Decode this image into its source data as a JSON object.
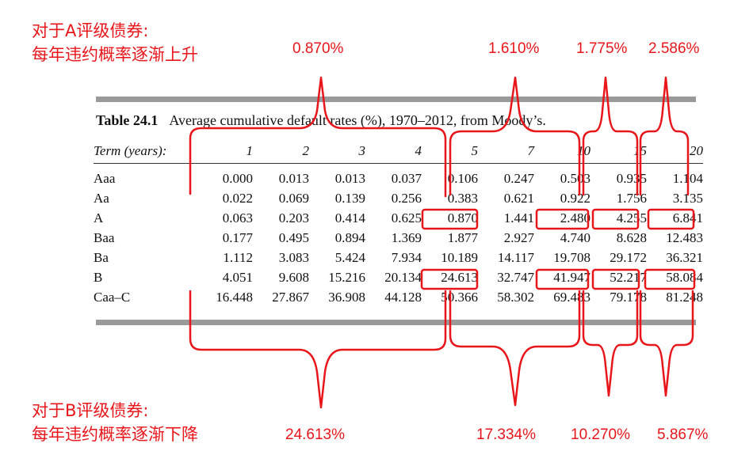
{
  "annotations": {
    "a_rating": {
      "title": "对于A评级债券:",
      "subtitle": "每年违约概率逐渐上升"
    },
    "b_rating": {
      "title": "对于B评级债券:",
      "subtitle": "每年违约概率逐渐下降"
    },
    "a_increments": [
      "0.870%",
      "1.610%",
      "1.775%",
      "2.586%"
    ],
    "b_increments": [
      "24.613%",
      "17.334%",
      "10.270%",
      "5.867%"
    ]
  },
  "table": {
    "label": "Table 24.1",
    "caption": "Average cumulative default rates (%), 1970–2012, from Moody’s.",
    "term_header": "Term (years):",
    "terms": [
      "1",
      "2",
      "3",
      "4",
      "5",
      "7",
      "10",
      "15",
      "20"
    ],
    "rows": [
      {
        "rating": "Aaa",
        "values": [
          "0.000",
          "0.013",
          "0.013",
          "0.037",
          "0.106",
          "0.247",
          "0.503",
          "0.935",
          "1.104"
        ]
      },
      {
        "rating": "Aa",
        "values": [
          "0.022",
          "0.069",
          "0.139",
          "0.256",
          "0.383",
          "0.621",
          "0.922",
          "1.756",
          "3.135"
        ]
      },
      {
        "rating": "A",
        "values": [
          "0.063",
          "0.203",
          "0.414",
          "0.625",
          "0.870",
          "1.441",
          "2.480",
          "4.255",
          "6.841"
        ]
      },
      {
        "rating": "Baa",
        "values": [
          "0.177",
          "0.495",
          "0.894",
          "1.369",
          "1.877",
          "2.927",
          "4.740",
          "8.628",
          "12.483"
        ]
      },
      {
        "rating": "Ba",
        "values": [
          "1.112",
          "3.083",
          "5.424",
          "7.934",
          "10.189",
          "14.117",
          "19.708",
          "29.172",
          "36.321"
        ]
      },
      {
        "rating": "B",
        "values": [
          "4.051",
          "9.608",
          "15.216",
          "20.134",
          "24.613",
          "32.747",
          "41.947",
          "52.217",
          "58.084"
        ]
      },
      {
        "rating": "Caa–C",
        "values": [
          "16.448",
          "27.867",
          "36.908",
          "44.128",
          "50.366",
          "58.302",
          "69.483",
          "79.178",
          "81.248"
        ]
      }
    ]
  },
  "colors": {
    "annotation": "#e8161b",
    "rule": "#9a9a9a",
    "text": "#111111"
  }
}
